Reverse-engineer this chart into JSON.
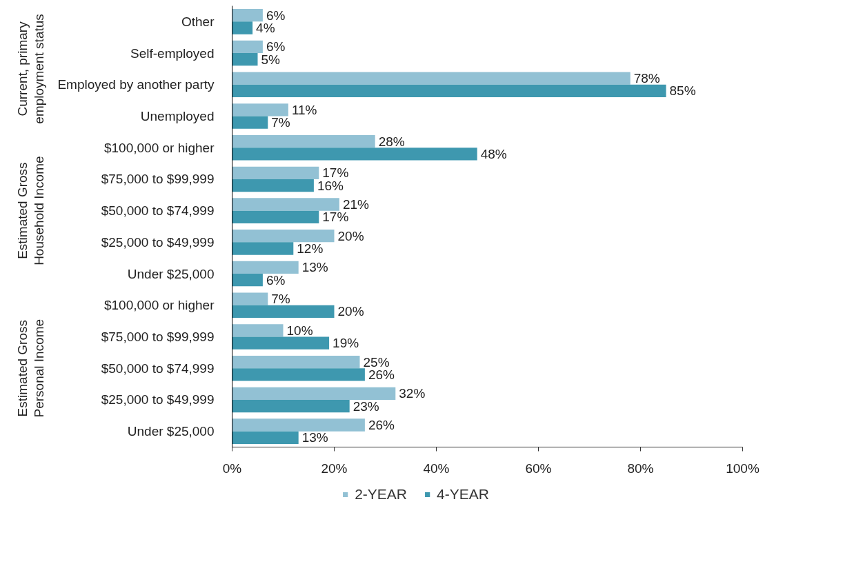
{
  "chart_data": {
    "type": "bar",
    "orientation": "horizontal",
    "categories": [
      "Other",
      "Self-employed",
      "Employed by another party",
      "Unemployed",
      "$100,000 or higher",
      "$75,000 to $99,999",
      "$50,000 to $74,999",
      "$25,000 to $49,999",
      "Under $25,000",
      "$100,000 or higher",
      "$75,000 to $99,999",
      "$50,000 to $74,999",
      "$25,000 to $49,999",
      "Under $25,000"
    ],
    "series": [
      {
        "name": "2-YEAR",
        "color": "#92c1d4",
        "values": [
          6,
          6,
          78,
          11,
          28,
          17,
          21,
          20,
          13,
          7,
          10,
          25,
          32,
          26
        ],
        "value_labels": [
          "6%",
          "6%",
          "78%",
          "11%",
          "28%",
          "17%",
          "21%",
          "20%",
          "13%",
          "7%",
          "10%",
          "25%",
          "32%",
          "26%"
        ]
      },
      {
        "name": "4-YEAR",
        "color": "#3e98af",
        "values": [
          4,
          5,
          85,
          7,
          48,
          16,
          17,
          12,
          6,
          20,
          19,
          26,
          23,
          13
        ],
        "value_labels": [
          "4%",
          "5%",
          "85%",
          "7%",
          "48%",
          "16%",
          "17%",
          "12%",
          "6%",
          "20%",
          "19%",
          "26%",
          "23%",
          "13%"
        ]
      }
    ],
    "xlim": [
      0,
      100
    ],
    "xticks": [
      {
        "value": 0,
        "label": "0%"
      },
      {
        "value": 20,
        "label": "20%"
      },
      {
        "value": 40,
        "label": "40%"
      },
      {
        "value": 60,
        "label": "60%"
      },
      {
        "value": 80,
        "label": "80%"
      },
      {
        "value": 100,
        "label": "100%"
      }
    ],
    "annotations": [
      "Current, primary\nemployment status",
      "Estimated Gross\nHousehold Income",
      "Estimated Gross\nPersonal Income"
    ],
    "grid": false,
    "legend": "bottom"
  }
}
